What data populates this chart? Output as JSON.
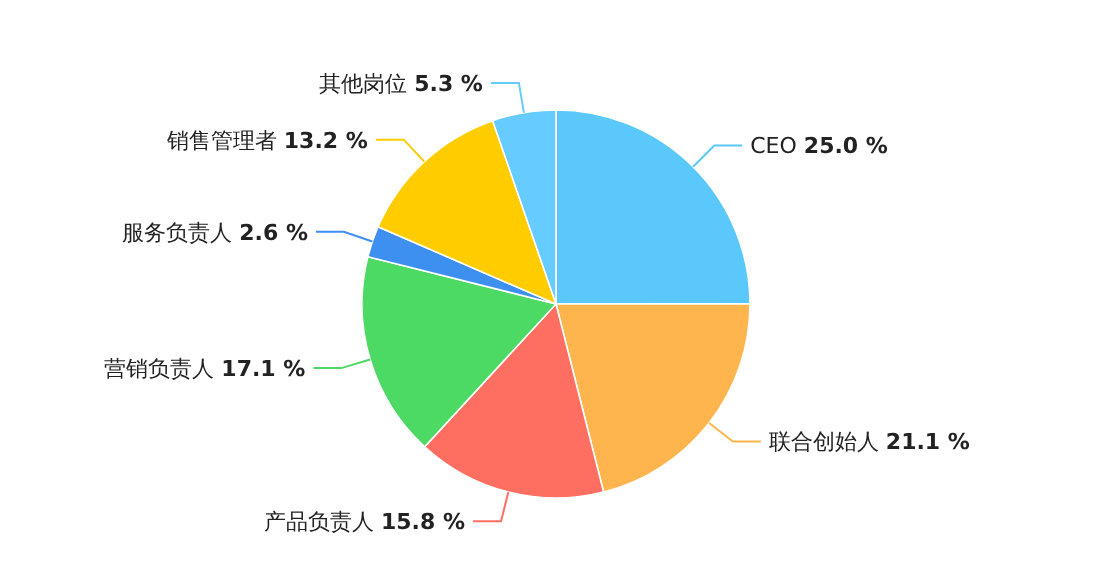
{
  "chart_data": {
    "type": "pie",
    "categories": [
      "CEO",
      "联合创始人",
      "产品负责人",
      "营销负责人",
      "服务负责人",
      "销售管理者",
      "其他岗位"
    ],
    "values": [
      25.0,
      21.1,
      15.8,
      17.1,
      2.6,
      13.2,
      5.3
    ],
    "value_labels": [
      "25.0 %",
      "21.1 %",
      "15.8 %",
      "17.1 %",
      "2.6 %",
      "13.2 %",
      "5.3 %"
    ],
    "colors": [
      "#5ac8fa",
      "#ffb54d",
      "#ff6f61",
      "#4cd964",
      "#3d8ff0",
      "#ffcc00",
      "#66ccff"
    ]
  }
}
